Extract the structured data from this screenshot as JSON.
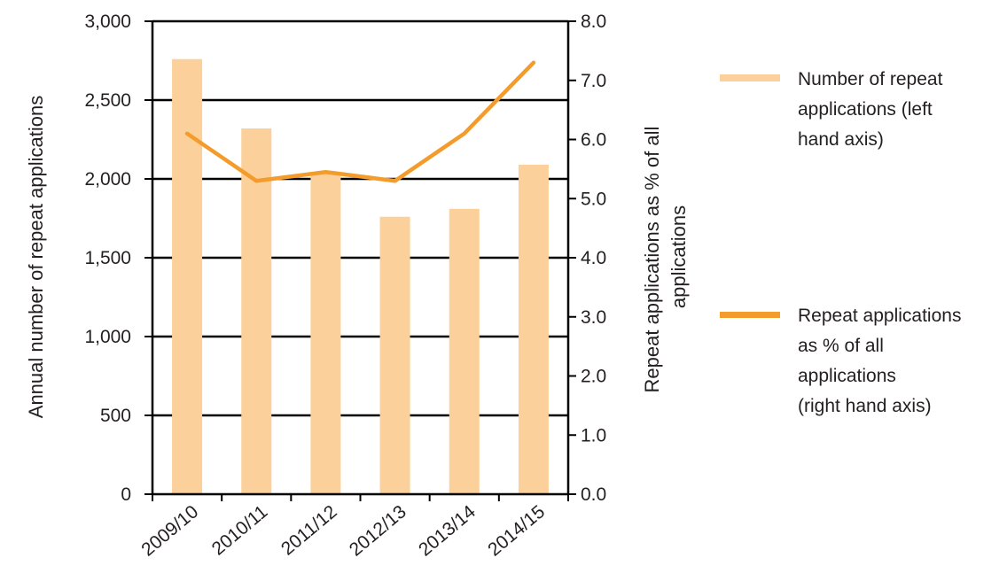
{
  "chart_data": {
    "type": "bar",
    "categories": [
      "2009/10",
      "2010/11",
      "2011/12",
      "2012/13",
      "2013/14",
      "2014/15"
    ],
    "series": [
      {
        "name": "Number of repeat applications (left hand axis)",
        "kind": "bar",
        "axis": "left",
        "values": [
          2760,
          2320,
          2040,
          1760,
          1810,
          2090
        ],
        "color": "#fbd09a"
      },
      {
        "name": "Repeat applications as % of all applications (right hand axis)",
        "kind": "line",
        "axis": "right",
        "values": [
          6.1,
          5.3,
          5.45,
          5.3,
          6.1,
          7.3
        ],
        "color": "#f39c2b"
      }
    ],
    "ylabel": "Annual number of repeat applications",
    "y2label": [
      "Repeat applications as % of all",
      "applications"
    ],
    "ylim": [
      0,
      3000
    ],
    "y2lim": [
      0,
      8
    ],
    "yticks": [
      "0",
      "500",
      "1,000",
      "1,500",
      "2,000",
      "2,500",
      "3,000"
    ],
    "y2ticks": [
      "0.0",
      "1.0",
      "2.0",
      "3.0",
      "4.0",
      "5.0",
      "6.0",
      "7.0",
      "8.0"
    ],
    "grid": true,
    "legend": {
      "position": "right",
      "entries": [
        {
          "lines": [
            "Number of repeat",
            "applications (left",
            "hand axis)"
          ],
          "color": "#fbd09a"
        },
        {
          "lines": [
            "Repeat applications",
            "as % of all",
            "applications",
            "(right hand axis)"
          ],
          "color": "#f39c2b"
        }
      ]
    }
  }
}
